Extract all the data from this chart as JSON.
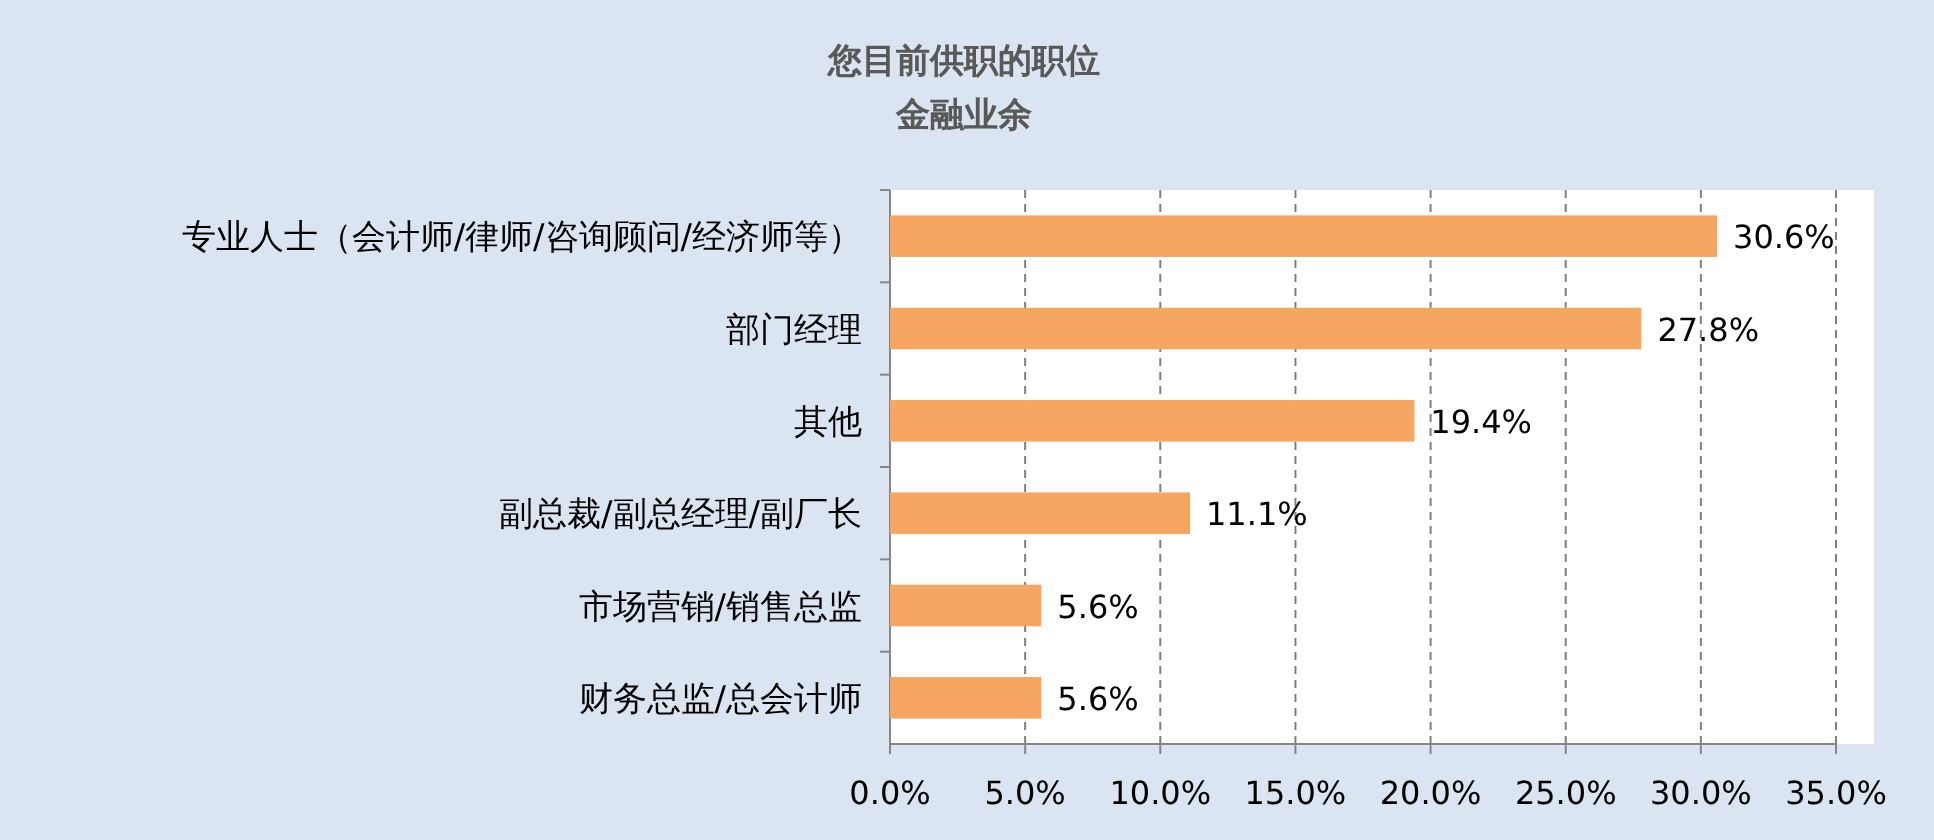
{
  "chart_data": {
    "type": "bar",
    "orientation": "horizontal",
    "title": "您目前供职的职位",
    "subtitle": "金融业余",
    "categories": [
      "专业人士（会计师/律师/咨询顾问/经济师等）",
      "部门经理",
      "其他",
      "副总裁/副总经理/副厂长",
      "市场营销/销售总监",
      "财务总监/总会计师"
    ],
    "values": [
      30.6,
      27.8,
      19.4,
      11.1,
      5.6,
      5.6
    ],
    "value_labels": [
      "30.6%",
      "27.8%",
      "19.4%",
      "11.1%",
      "5.6%",
      "5.6%"
    ],
    "color": "#f7a662",
    "xlim": [
      0,
      35
    ],
    "xticks": [
      {
        "value": 0,
        "label": "0.0%"
      },
      {
        "value": 5,
        "label": "5.0%"
      },
      {
        "value": 10,
        "label": "10.0%"
      },
      {
        "value": 15,
        "label": "15.0%"
      },
      {
        "value": 20,
        "label": "20.0%"
      },
      {
        "value": 25,
        "label": "25.0%"
      },
      {
        "value": 30,
        "label": "30.0%"
      },
      {
        "value": 35,
        "label": "35.0%"
      }
    ],
    "grid": "x"
  }
}
